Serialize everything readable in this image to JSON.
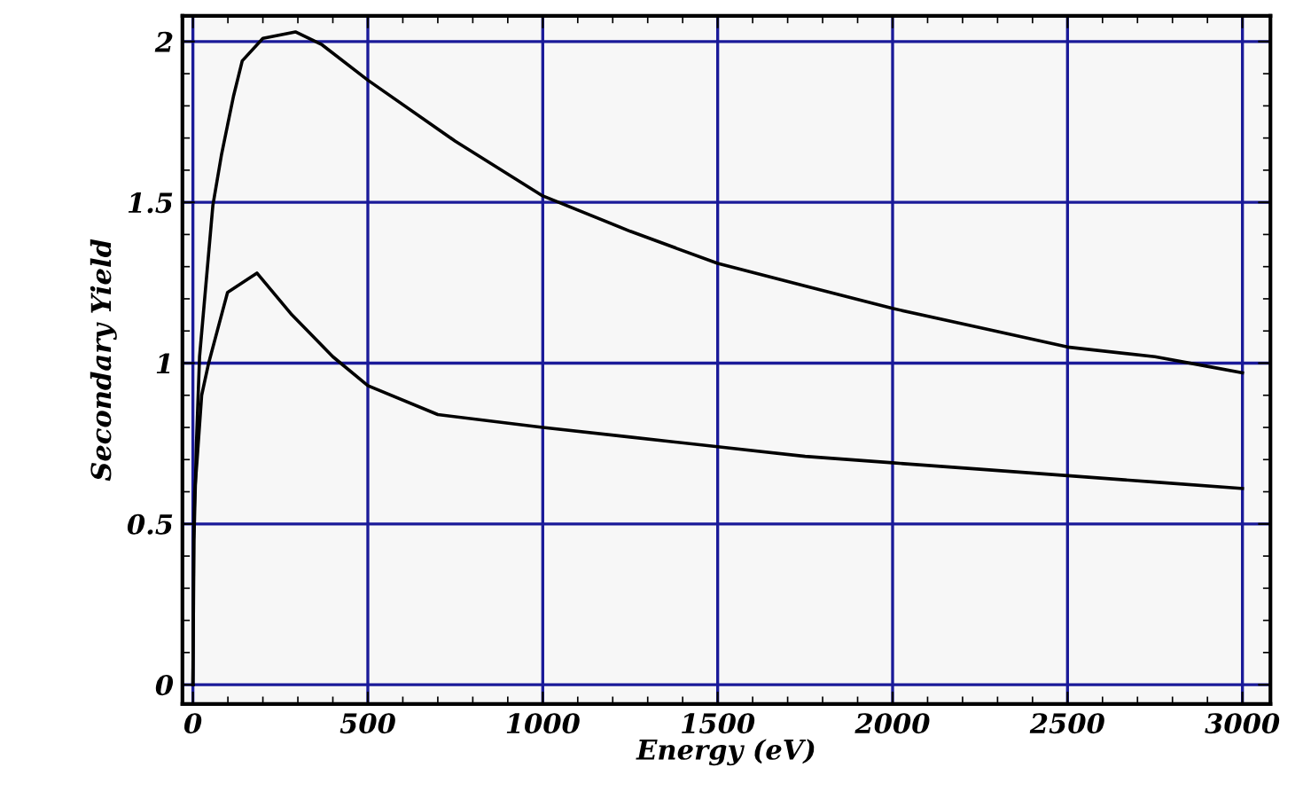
{
  "chart_data": {
    "type": "line",
    "xlabel": "Energy (eV)",
    "ylabel": "Secondary Yield",
    "series": [
      {
        "color": "#000000",
        "x": [
          0,
          3,
          10,
          19,
          57,
          82,
          116,
          141,
          200,
          293,
          369,
          500,
          750,
          1000,
          1250,
          1500,
          1750,
          2000,
          2250,
          2500,
          2750,
          2900,
          3000
        ],
        "values": [
          0,
          0.45,
          0.75,
          1.02,
          1.49,
          1.65,
          1.83,
          1.94,
          2.01,
          2.03,
          1.99,
          1.88,
          1.69,
          1.52,
          1.41,
          1.31,
          1.24,
          1.17,
          1.11,
          1.05,
          1.02,
          0.99,
          0.97
        ]
      },
      {
        "color": "#000000",
        "x": [
          0,
          2,
          5,
          12,
          25,
          45,
          99,
          183,
          283,
          400,
          500,
          700,
          1000,
          1250,
          1500,
          1750,
          2000,
          2250,
          2500,
          2750,
          3000
        ],
        "values": [
          0,
          0.45,
          0.6,
          0.7,
          0.9,
          1.0,
          1.22,
          1.28,
          1.15,
          1.02,
          0.93,
          0.84,
          0.8,
          0.77,
          0.74,
          0.71,
          0.69,
          0.67,
          0.65,
          0.63,
          0.61
        ]
      }
    ],
    "xlim": [
      -30,
      3080
    ],
    "ylim": [
      -0.06,
      2.08
    ],
    "xticks": [
      0,
      500,
      1000,
      1500,
      2000,
      2500,
      3000
    ],
    "yticks": [
      0,
      0.5,
      1,
      1.5,
      2
    ],
    "grid": true,
    "marker": "none",
    "line_style": "solid"
  }
}
